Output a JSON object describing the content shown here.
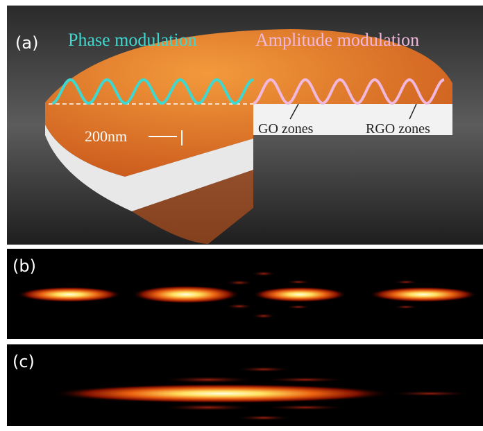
{
  "panels": {
    "a": {
      "label": "(a)",
      "phase": "Phase modulation",
      "amplitude": "Amplitude modulation",
      "thickness": "200nm",
      "go": "GO zones",
      "rgo": "RGO zones"
    },
    "b": {
      "label": "(b)"
    },
    "c": {
      "label": "(c)"
    }
  }
}
